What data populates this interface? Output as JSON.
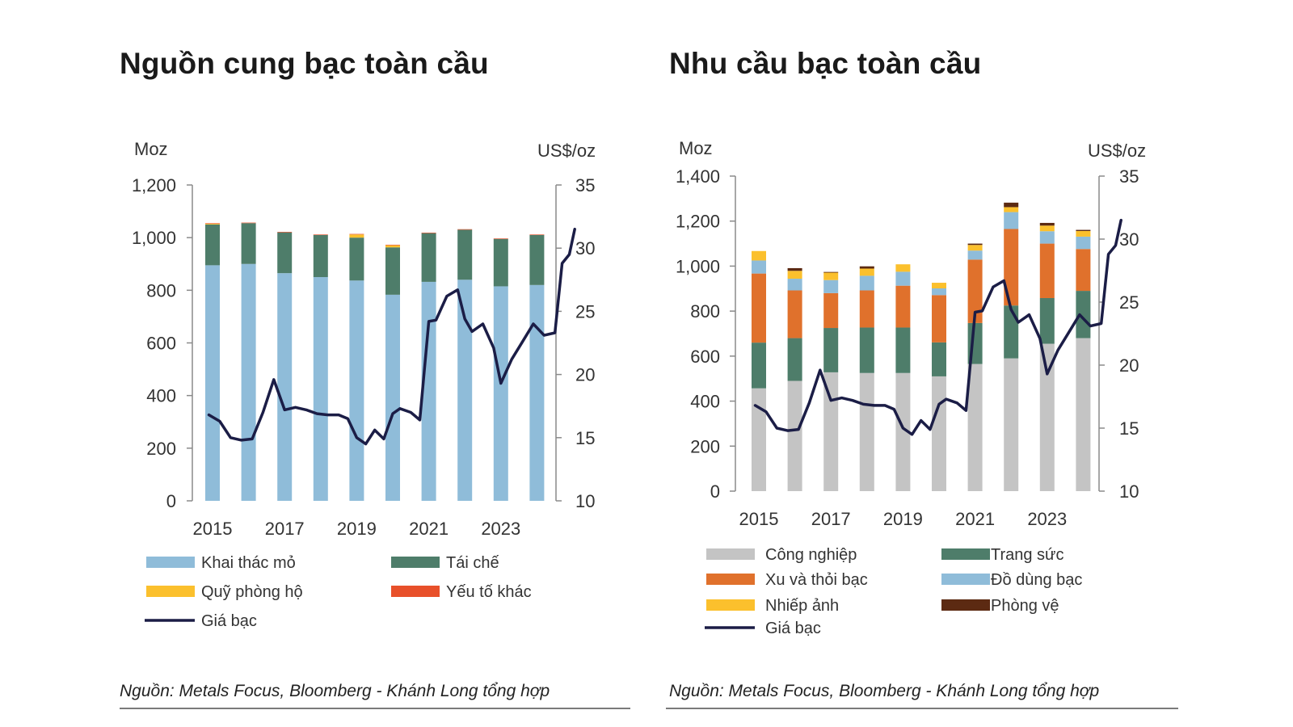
{
  "chart_data": [
    {
      "type": "bar",
      "stacked": true,
      "title": "Nguồn cung bạc toàn cầu",
      "ylabel_left": "Moz",
      "ylabel_right": "US$/oz",
      "ylim_left": [
        0,
        1200
      ],
      "yticks_left": [
        "0",
        "200",
        "400",
        "600",
        "800",
        "1,000",
        "1,200"
      ],
      "ylim_right": [
        10,
        35
      ],
      "yticks_right": [
        "10",
        "15",
        "20",
        "25",
        "30",
        "35"
      ],
      "categories": [
        "2015",
        "2016",
        "2017",
        "2018",
        "2019",
        "2020",
        "2021",
        "2022",
        "2023",
        "2024"
      ],
      "xtick_labels": [
        "2015",
        "",
        "2017",
        "",
        "2019",
        "",
        "2021",
        "",
        "2023",
        ""
      ],
      "series": [
        {
          "name": "Khai thác mỏ",
          "color": "#8fbcd9",
          "values": [
            895,
            900,
            865,
            850,
            837,
            783,
            832,
            840,
            815,
            820
          ]
        },
        {
          "name": "Tái chế",
          "color": "#4e7d6a",
          "values": [
            155,
            155,
            155,
            160,
            163,
            180,
            185,
            190,
            180,
            190
          ]
        },
        {
          "name": "Quỹ phòng hộ",
          "color": "#fbc02d",
          "values": [
            3,
            0,
            0,
            0,
            12,
            8,
            0,
            0,
            0,
            0
          ]
        },
        {
          "name": "Yếu tố khác",
          "color": "#e8502a",
          "values": [
            2,
            2,
            2,
            2,
            2,
            2,
            2,
            2,
            2,
            2
          ]
        }
      ],
      "line": {
        "name": "Giá bạc",
        "color": "#1b1d46",
        "x": [
          2014.9,
          2015.2,
          2015.5,
          2015.8,
          2016.1,
          2016.4,
          2016.7,
          2017.0,
          2017.3,
          2017.6,
          2017.9,
          2018.2,
          2018.5,
          2018.75,
          2019.0,
          2019.25,
          2019.5,
          2019.75,
          2020.0,
          2020.2,
          2020.5,
          2020.75,
          2021.0,
          2021.2,
          2021.5,
          2021.8,
          2022.0,
          2022.2,
          2022.5,
          2022.8,
          2023.0,
          2023.3,
          2023.6,
          2023.9,
          2024.0,
          2024.2,
          2024.5
        ],
        "values": [
          16.8,
          16.3,
          15.0,
          14.8,
          14.9,
          17.0,
          19.6,
          17.2,
          17.4,
          17.2,
          16.9,
          16.8,
          16.8,
          16.5,
          15.0,
          14.5,
          15.6,
          14.9,
          16.9,
          17.3,
          17.0,
          16.4,
          24.2,
          24.3,
          26.2,
          26.7,
          24.4,
          23.4,
          24.0,
          22.1,
          19.3,
          21.2,
          22.6,
          24.0,
          23.7,
          23.1,
          23.3
        ]
      },
      "line_tail": {
        "x": [
          2024.5,
          2024.7,
          2024.9,
          2025.05
        ],
        "values": [
          23.3,
          28.8,
          29.5,
          31.5
        ]
      }
    },
    {
      "type": "bar",
      "stacked": true,
      "title": "Nhu cầu bạc toàn cầu",
      "ylabel_left": "Moz",
      "ylabel_right": "US$/oz",
      "ylim_left": [
        0,
        1400
      ],
      "yticks_left": [
        "0",
        "200",
        "400",
        "600",
        "800",
        "1,000",
        "1,200",
        "1,400"
      ],
      "ylim_right": [
        10,
        35
      ],
      "yticks_right": [
        "10",
        "15",
        "20",
        "25",
        "30",
        "35"
      ],
      "categories": [
        "2015",
        "2016",
        "2017",
        "2018",
        "2019",
        "2020",
        "2021",
        "2022",
        "2023",
        "2024"
      ],
      "xtick_labels": [
        "2015",
        "",
        "2017",
        "",
        "2019",
        "",
        "2021",
        "",
        "2023",
        ""
      ],
      "series": [
        {
          "name": "Công nghiệp",
          "color": "#c4c4c4",
          "values": [
            457,
            490,
            528,
            525,
            525,
            510,
            565,
            590,
            655,
            680
          ]
        },
        {
          "name": "Trang sức",
          "color": "#4e7d6a",
          "values": [
            203,
            190,
            197,
            202,
            202,
            151,
            182,
            235,
            203,
            210
          ]
        },
        {
          "name": "Xu và thỏi bạc",
          "color": "#e0712c",
          "values": [
            307,
            212,
            155,
            165,
            186,
            210,
            282,
            340,
            242,
            186
          ]
        },
        {
          "name": "Đồ dùng bạc",
          "color": "#8fbcd9",
          "values": [
            58,
            52,
            58,
            65,
            62,
            30,
            40,
            75,
            55,
            55
          ]
        },
        {
          "name": "Nhiếp ảnh",
          "color": "#fbc02d",
          "values": [
            42,
            35,
            33,
            32,
            33,
            25,
            25,
            22,
            25,
            25
          ]
        },
        {
          "name": "Phòng vệ",
          "color": "#5c2a12",
          "values": [
            0,
            12,
            3,
            10,
            0,
            0,
            6,
            20,
            12,
            5
          ]
        }
      ],
      "line": {
        "name": "Giá bạc",
        "color": "#1b1d46",
        "x": [
          2014.9,
          2015.2,
          2015.5,
          2015.8,
          2016.1,
          2016.4,
          2016.7,
          2017.0,
          2017.3,
          2017.6,
          2017.9,
          2018.2,
          2018.5,
          2018.75,
          2019.0,
          2019.25,
          2019.5,
          2019.75,
          2020.0,
          2020.2,
          2020.5,
          2020.75,
          2021.0,
          2021.2,
          2021.5,
          2021.8,
          2022.0,
          2022.2,
          2022.5,
          2022.8,
          2023.0,
          2023.3,
          2023.6,
          2023.9,
          2024.0,
          2024.2,
          2024.5
        ],
        "values": [
          16.8,
          16.3,
          15.0,
          14.8,
          14.9,
          17.0,
          19.6,
          17.2,
          17.4,
          17.2,
          16.9,
          16.8,
          16.8,
          16.5,
          15.0,
          14.5,
          15.6,
          14.9,
          16.9,
          17.3,
          17.0,
          16.4,
          24.2,
          24.3,
          26.2,
          26.7,
          24.4,
          23.4,
          24.0,
          22.1,
          19.3,
          21.2,
          22.6,
          24.0,
          23.7,
          23.1,
          23.3
        ]
      },
      "line_tail": {
        "x": [
          2024.5,
          2024.7,
          2024.9,
          2025.05
        ],
        "values": [
          23.3,
          28.8,
          29.5,
          31.5
        ]
      }
    }
  ],
  "legends": {
    "supply": [
      "Khai thác mỏ",
      "Tái chế",
      "Quỹ phòng hộ",
      "Yếu tố khác",
      "Giá bạc"
    ],
    "demand": [
      "Công nghiệp",
      "Trang sức",
      "Xu và thỏi bạc",
      "Đồ dùng bạc",
      "Nhiếp ảnh",
      "Phòng vệ",
      "Giá bạc"
    ]
  },
  "source_note": "Nguồn: Metals Focus, Bloomberg - Khánh Long tổng hợp"
}
